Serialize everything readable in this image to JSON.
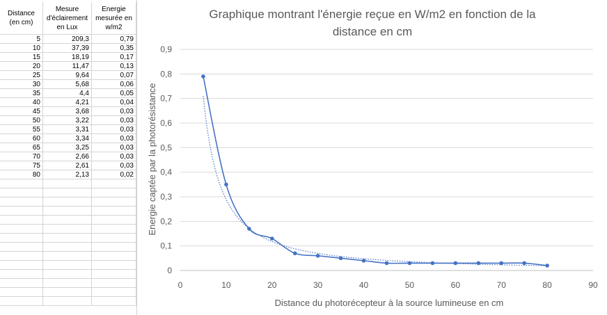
{
  "table": {
    "headers": [
      [
        "Distance",
        "(en cm)"
      ],
      [
        "Mesure",
        "d'éclairement",
        "en Lux"
      ],
      [
        "Energie",
        "mesurée en",
        "w/m2"
      ]
    ],
    "rows": [
      [
        "5",
        "209,3",
        "0,79"
      ],
      [
        "10",
        "37,39",
        "0,35"
      ],
      [
        "15",
        "18,19",
        "0,17"
      ],
      [
        "20",
        "11,47",
        "0,13"
      ],
      [
        "25",
        "9,64",
        "0,07"
      ],
      [
        "30",
        "5,68",
        "0,06"
      ],
      [
        "35",
        "4,4",
        "0,05"
      ],
      [
        "40",
        "4,21",
        "0,04"
      ],
      [
        "45",
        "3,68",
        "0,03"
      ],
      [
        "50",
        "3,22",
        "0,03"
      ],
      [
        "55",
        "3,31",
        "0,03"
      ],
      [
        "60",
        "3,34",
        "0,03"
      ],
      [
        "65",
        "3,25",
        "0,03"
      ],
      [
        "70",
        "2,66",
        "0,03"
      ],
      [
        "75",
        "2,61",
        "0,03"
      ],
      [
        "80",
        "2,13",
        "0,02"
      ]
    ]
  },
  "chart_data": {
    "type": "scatter",
    "title": "Graphique montrant l'énergie reçue en W/m2 en fonction de la distance en cm",
    "title_lines": [
      "Graphique montrant l'énergie reçue en W/m2 en fonction de la",
      "distance en cm"
    ],
    "xlabel": "Distance du photorécepteur à la source lumineuse en cm",
    "ylabel": "Energie captée par la photorésistance",
    "xlim": [
      0,
      90
    ],
    "ylim": [
      0,
      0.9
    ],
    "x_ticks": [
      "0",
      "10",
      "20",
      "30",
      "40",
      "50",
      "60",
      "70",
      "80",
      "90"
    ],
    "y_ticks": [
      "0",
      "0,1",
      "0,2",
      "0,3",
      "0,4",
      "0,5",
      "0,6",
      "0,7",
      "0,8",
      "0,9"
    ],
    "grid": true,
    "series": [
      {
        "x": [
          5,
          10,
          15,
          20,
          25,
          30,
          35,
          40,
          45,
          50,
          55,
          60,
          65,
          70,
          75,
          80
        ],
        "y": [
          0.79,
          0.35,
          0.17,
          0.13,
          0.07,
          0.06,
          0.05,
          0.04,
          0.03,
          0.03,
          0.03,
          0.03,
          0.03,
          0.03,
          0.03,
          0.02
        ],
        "color": "#4472c4",
        "line": "smooth",
        "marker": "circle",
        "trendline": "power"
      }
    ]
  }
}
